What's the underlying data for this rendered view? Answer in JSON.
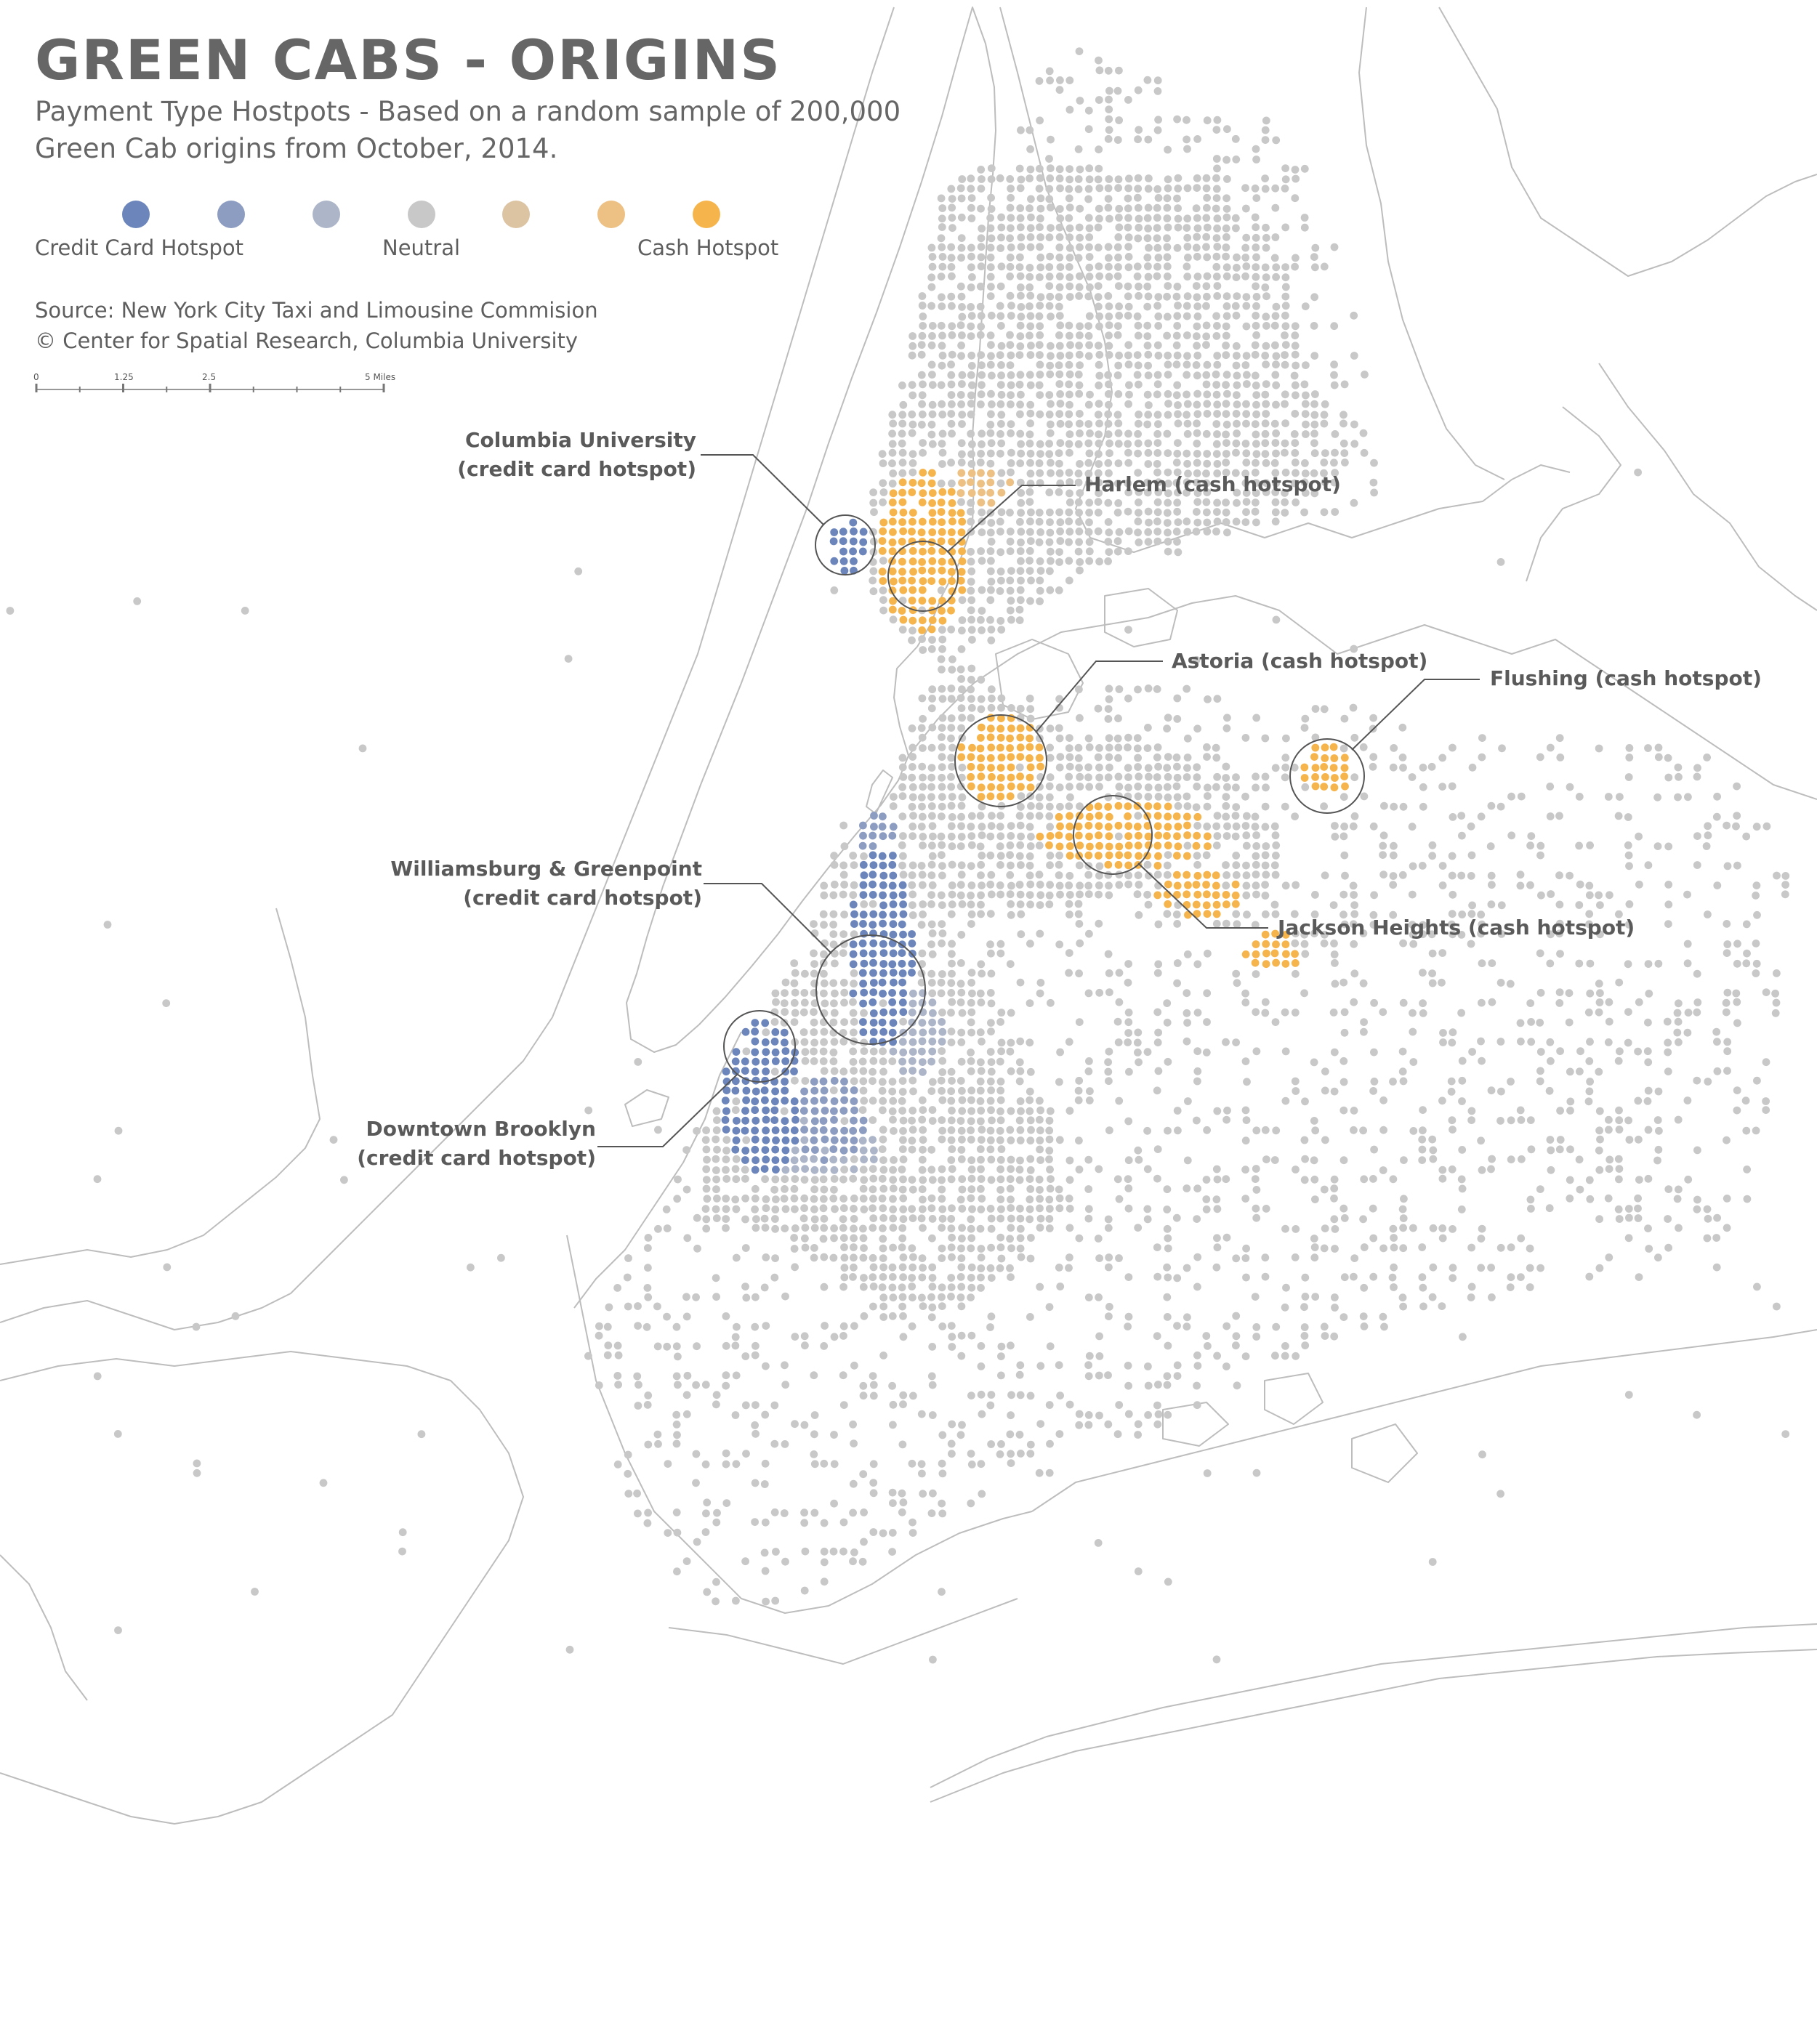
{
  "title": "GREEN CABS - ORIGINS",
  "subtitle": "Payment Type Hostpots - Based on a random sample of 200,000 Green Cab origins from October, 2014.",
  "legend": {
    "colors": [
      "#6c86bc",
      "#8d9dc2",
      "#adb5c9",
      "#c8c8c8",
      "#dcc4a3",
      "#edc084",
      "#f6b54c"
    ],
    "labels": {
      "credit": "Credit Card Hotspot",
      "neutral": "Neutral",
      "cash": "Cash Hotspot"
    }
  },
  "source": {
    "line1": "Source: New York City Taxi and Limousine Commision",
    "line2": "© Center for Spatial Research, Columbia University"
  },
  "scale_bar": {
    "labels": [
      "0",
      "1.25",
      "2.5",
      "5 Miles"
    ]
  },
  "callouts": {
    "columbia": {
      "line1": "Columbia University",
      "line2": "(credit card hotspot)"
    },
    "harlem": {
      "line1": "Harlem (cash hotspot)"
    },
    "astoria": {
      "line1": "Astoria (cash hotspot)"
    },
    "flushing": {
      "line1": "Flushing (cash hotspot)"
    },
    "williamsburg": {
      "line1": "Williamsburg & Greenpoint",
      "line2": "(credit card hotspot)"
    },
    "jackson": {
      "line1": "Jackson Heights (cash hotspot)"
    },
    "downtown": {
      "line1": "Downtown Brooklyn",
      "line2": "(credit card hotspot)"
    }
  },
  "hotspots": [
    {
      "name": "Columbia University",
      "type": "credit card"
    },
    {
      "name": "Harlem",
      "type": "cash"
    },
    {
      "name": "Astoria",
      "type": "cash"
    },
    {
      "name": "Flushing",
      "type": "cash"
    },
    {
      "name": "Williamsburg & Greenpoint",
      "type": "credit card"
    },
    {
      "name": "Jackson Heights",
      "type": "cash"
    },
    {
      "name": "Downtown Brooklyn",
      "type": "credit card"
    }
  ]
}
